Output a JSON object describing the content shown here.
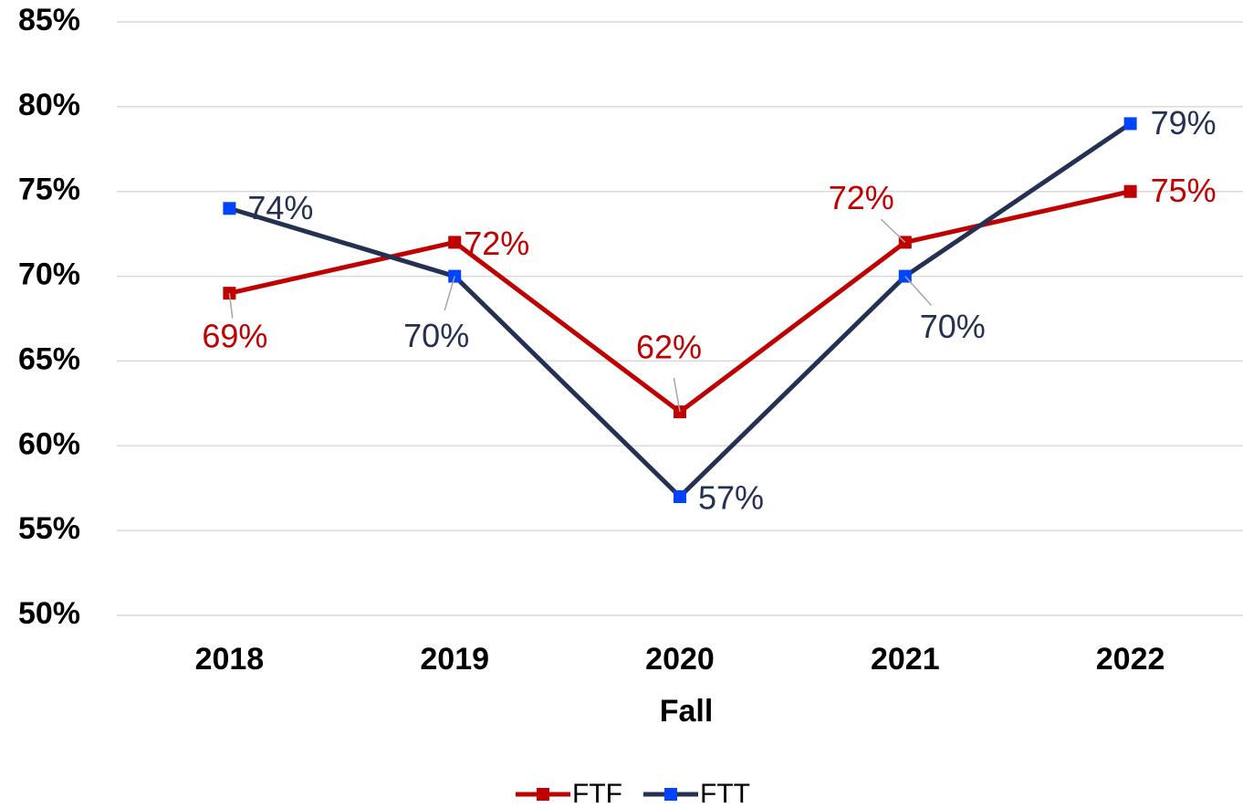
{
  "chart_data": {
    "type": "line",
    "x_label": "Fall",
    "categories": [
      "2018",
      "2019",
      "2020",
      "2021",
      "2022"
    ],
    "series": [
      {
        "name": "FTF",
        "color": "#c00000",
        "marker_color": "#c00000",
        "values": [
          69,
          72,
          62,
          72,
          75
        ],
        "value_labels": [
          "69%",
          "72%",
          "62%",
          "72%",
          "75%"
        ]
      },
      {
        "name": "FTT",
        "color": "#253152",
        "marker_color": "#0044ff",
        "values": [
          74,
          70,
          57,
          70,
          79
        ],
        "value_labels": [
          "74%",
          "70%",
          "57%",
          "70%",
          "79%"
        ]
      }
    ],
    "ylim": [
      50,
      85
    ],
    "yticks": [
      {
        "value": 50,
        "label": "50%"
      },
      {
        "value": 55,
        "label": "55%"
      },
      {
        "value": 60,
        "label": "60%"
      },
      {
        "value": 65,
        "label": "65%"
      },
      {
        "value": 70,
        "label": "70%"
      },
      {
        "value": 75,
        "label": "75%"
      },
      {
        "value": 80,
        "label": "80%"
      },
      {
        "value": 85,
        "label": "85%"
      }
    ],
    "grid": true,
    "legend": "bottom"
  }
}
